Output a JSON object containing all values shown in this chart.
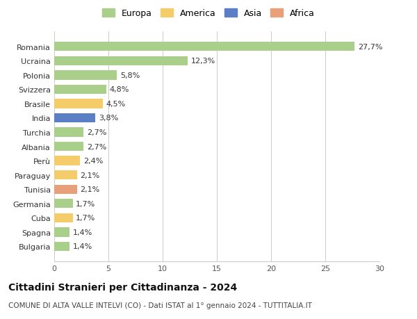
{
  "countries": [
    "Romania",
    "Ucraina",
    "Polonia",
    "Svizzera",
    "Brasile",
    "India",
    "Turchia",
    "Albania",
    "Perù",
    "Paraguay",
    "Tunisia",
    "Germania",
    "Cuba",
    "Spagna",
    "Bulgaria"
  ],
  "values": [
    27.7,
    12.3,
    5.8,
    4.8,
    4.5,
    3.8,
    2.7,
    2.7,
    2.4,
    2.1,
    2.1,
    1.7,
    1.7,
    1.4,
    1.4
  ],
  "labels": [
    "27,7%",
    "12,3%",
    "5,8%",
    "4,8%",
    "4,5%",
    "3,8%",
    "2,7%",
    "2,7%",
    "2,4%",
    "2,1%",
    "2,1%",
    "1,7%",
    "1,7%",
    "1,4%",
    "1,4%"
  ],
  "continents": [
    "Europa",
    "Europa",
    "Europa",
    "Europa",
    "America",
    "Asia",
    "Europa",
    "Europa",
    "America",
    "America",
    "Africa",
    "Europa",
    "America",
    "Europa",
    "Europa"
  ],
  "continent_colors": {
    "Europa": "#aacf8a",
    "America": "#f5cc6a",
    "Asia": "#5b7fc4",
    "Africa": "#e8a07a"
  },
  "legend_order": [
    "Europa",
    "America",
    "Asia",
    "Africa"
  ],
  "xlim": [
    0,
    30
  ],
  "xticks": [
    0,
    5,
    10,
    15,
    20,
    25,
    30
  ],
  "title": "Cittadini Stranieri per Cittadinanza - 2024",
  "subtitle": "COMUNE DI ALTA VALLE INTELVI (CO) - Dati ISTAT al 1° gennaio 2024 - TUTTITALIA.IT",
  "bg_color": "#ffffff",
  "grid_color": "#cccccc",
  "bar_height": 0.65,
  "label_fontsize": 8,
  "tick_fontsize": 8,
  "title_fontsize": 10,
  "subtitle_fontsize": 7.5
}
